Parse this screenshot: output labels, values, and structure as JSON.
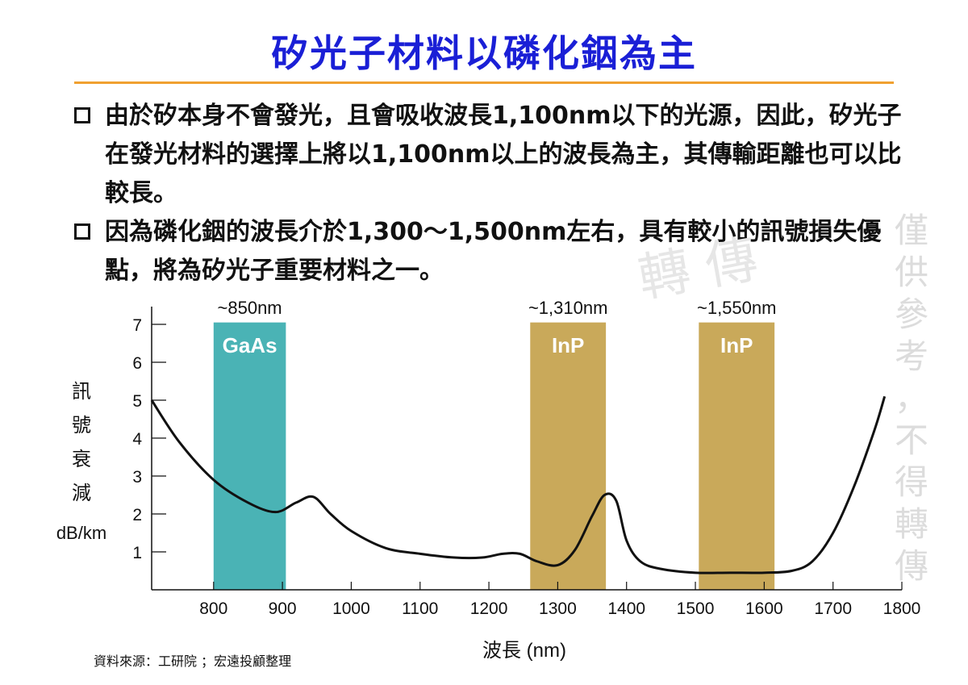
{
  "title": "矽光子材料以磷化銦為主",
  "bullets": [
    "由於矽本身不會發光，且會吸收波長1,100nm以下的光源，因此，矽光子在發光材料的選擇上將以1,100nm以上的波長為主，其傳輸距離也可以比較長。",
    "因為磷化銦的波長介於1,300～1,500nm左右，具有較小的訊號損失優點，將為矽光子重要材料之一。"
  ],
  "watermark": {
    "big": "轉 傳",
    "side": [
      "僅",
      "供",
      "參",
      "考",
      "，",
      "不",
      "得",
      "轉",
      "傳"
    ]
  },
  "source": "資料來源：工研院 ；宏遠投顧整理",
  "chart_data": {
    "type": "line",
    "title": "",
    "xlabel": "波長 (nm)",
    "ylabel": [
      "訊",
      "號",
      "衰",
      "減",
      "dB/km"
    ],
    "xlim": [
      710,
      1800
    ],
    "ylim": [
      0,
      7.2
    ],
    "x_ticks": [
      800,
      900,
      1000,
      1100,
      1200,
      1300,
      1400,
      1500,
      1600,
      1700,
      1800
    ],
    "y_ticks": [
      1,
      2,
      3,
      4,
      5,
      6,
      7
    ],
    "bands": [
      {
        "x0": 800,
        "x1": 905,
        "label": "GaAs",
        "annotation": "~850nm",
        "color": "#4ab3b5"
      },
      {
        "x0": 1260,
        "x1": 1370,
        "label": "InP",
        "annotation": "~1,310nm",
        "color": "#c9a95a"
      },
      {
        "x0": 1505,
        "x1": 1615,
        "label": "InP",
        "annotation": "~1,550nm",
        "color": "#c9a95a"
      }
    ],
    "series": [
      {
        "x": [
          710,
          750,
          800,
          850,
          890,
          920,
          945,
          970,
          1000,
          1050,
          1100,
          1150,
          1190,
          1220,
          1245,
          1270,
          1300,
          1325,
          1350,
          1368,
          1385,
          1400,
          1420,
          1450,
          1500,
          1550,
          1600,
          1640,
          1670,
          1700,
          1730,
          1760,
          1775
        ],
        "y": [
          5.0,
          3.9,
          2.9,
          2.3,
          2.05,
          2.3,
          2.45,
          2.0,
          1.55,
          1.1,
          0.95,
          0.85,
          0.85,
          0.95,
          0.95,
          0.75,
          0.65,
          1.05,
          1.95,
          2.5,
          2.35,
          1.3,
          0.75,
          0.55,
          0.45,
          0.45,
          0.45,
          0.5,
          0.75,
          1.5,
          2.7,
          4.2,
          5.1
        ],
        "color": "#111111"
      }
    ]
  }
}
